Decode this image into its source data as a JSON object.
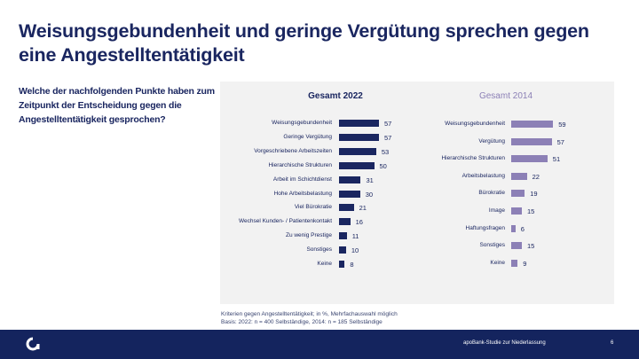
{
  "slide": {
    "title": "Weisungsgebundenheit und geringe Vergütung sprechen gegen eine Angestelltentätigkeit",
    "question": "Welche der nachfolgenden Punkte haben zum Zeitpunkt der Entscheidung gegen die Angestelltentätigkeit gesprochen?",
    "note_line1": "Kriterien gegen Angestelltentätigkeit; in %, Mehrfachauswahl möglich",
    "note_line2": "Basis: 2022: n = 400 Selbständige, 2014: n = 185 Selbständige",
    "footer_text": "apoBank-Studie zur Niederlassung",
    "page_number": "6",
    "logo_icon": "apobank-logo-icon"
  },
  "chart_data": [
    {
      "type": "bar",
      "orientation": "horizontal",
      "title": "Gesamt 2022",
      "color": "#1a2660",
      "categories": [
        "Weisungsgebundenheit",
        "Geringe Vergütung",
        "Vorgeschriebene Arbeitszeiten",
        "Hierarchische Strukturen",
        "Arbeit im Schichtdienst",
        "Hohe Arbeitsbelastung",
        "Viel Bürokratie",
        "Wechsel Kunden- / Patientenkontakt",
        "Zu wenig Prestige",
        "Sonstiges",
        "Keine"
      ],
      "values": [
        57,
        57,
        53,
        50,
        31,
        30,
        21,
        16,
        11,
        10,
        8
      ],
      "xlabel": "",
      "ylabel": "",
      "unit": "%"
    },
    {
      "type": "bar",
      "orientation": "horizontal",
      "title": "Gesamt 2014",
      "color": "#8c80b6",
      "categories": [
        "Weisungsgebundenheit",
        "Vergütung",
        "Hierarchische Strukturen",
        "Arbeitsbelastung",
        "Bürokratie",
        "Image",
        "Haftungsfragen",
        "Sonstiges",
        "Keine"
      ],
      "values": [
        59,
        57,
        51,
        22,
        19,
        15,
        6,
        15,
        9
      ],
      "xlabel": "",
      "ylabel": "",
      "unit": "%"
    }
  ]
}
